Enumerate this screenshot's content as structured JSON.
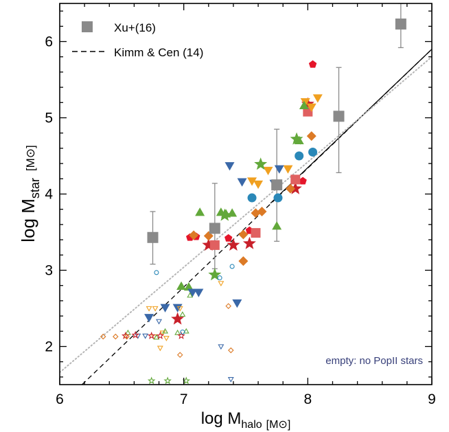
{
  "chart_data": {
    "type": "scatter",
    "xlabel_main": "log M",
    "xlabel_sub": "halo",
    "xlabel_unit": "[M⊙]",
    "ylabel_main": "log M",
    "ylabel_sub": "star",
    "ylabel_unit": "[M⊙]",
    "xlim": [
      6,
      9
    ],
    "ylim": [
      1.5,
      6.5
    ],
    "xticks": [
      6,
      7,
      8,
      9
    ],
    "yticks": [
      2,
      3,
      4,
      5,
      6
    ],
    "annotation": "empty: no PopII stars",
    "legend_position": "top-left",
    "legend": [
      {
        "label": "Xu+(16)",
        "style": "grey-square"
      },
      {
        "label": "Kimm & Cen (14)",
        "style": "dashed-line"
      }
    ],
    "colors": {
      "grey": "#8a8a8a",
      "red": "#c8202a",
      "bright_red": "#e5152a",
      "pink": "#e06060",
      "orange": "#dc7a26",
      "yellow_orange": "#f0a020",
      "green": "#62a83a",
      "blue": "#3a68a8",
      "teal": "#2a88b8",
      "annotation": "#38407a"
    },
    "lines": [
      {
        "name": "Kimm & Cen (14)",
        "style": "dashed",
        "x": [
          6.18,
          9.0
        ],
        "y": [
          1.5,
          5.9
        ]
      },
      {
        "name": "solid",
        "style": "solid",
        "x": [
          7.7,
          9.0
        ],
        "y": [
          3.88,
          5.9
        ]
      },
      {
        "name": "dotted",
        "style": "dotted",
        "x": [
          6.0,
          9.0
        ],
        "y": [
          1.66,
          5.8
        ]
      }
    ],
    "xu16": {
      "x": [
        6.75,
        7.25,
        7.75,
        8.25,
        8.75
      ],
      "y": [
        3.43,
        3.55,
        4.12,
        5.02,
        6.23
      ],
      "ylo": [
        3.08,
        3.02,
        3.38,
        4.28,
        5.92
      ],
      "yhi": [
        3.77,
        4.14,
        4.85,
        5.66,
        6.5
      ]
    },
    "series": [
      {
        "marker": "star",
        "color": "red",
        "filled": true,
        "points": [
          [
            8.0,
            5.18
          ],
          [
            7.9,
            4.07
          ],
          [
            7.2,
            3.33
          ],
          [
            7.4,
            3.33
          ],
          [
            7.53,
            3.35
          ],
          [
            6.95,
            2.36
          ]
        ]
      },
      {
        "marker": "pentagon",
        "color": "bright_red",
        "filled": true,
        "points": [
          [
            8.04,
            5.7
          ],
          [
            7.96,
            4.17
          ],
          [
            7.1,
            3.44
          ],
          [
            7.05,
            3.43
          ],
          [
            7.36,
            3.42
          ],
          [
            7.53,
            3.52
          ]
        ]
      },
      {
        "marker": "square",
        "color": "pink",
        "filled": true,
        "points": [
          [
            8.0,
            5.08
          ],
          [
            7.9,
            4.19
          ],
          [
            7.58,
            3.49
          ],
          [
            7.25,
            3.33
          ]
        ]
      },
      {
        "marker": "diamond",
        "color": "orange",
        "filled": true,
        "points": [
          [
            8.03,
            4.76
          ],
          [
            7.86,
            4.07
          ],
          [
            7.63,
            3.77
          ],
          [
            7.58,
            3.75
          ],
          [
            7.08,
            3.46
          ],
          [
            7.2,
            3.45
          ],
          [
            7.48,
            3.47
          ],
          [
            7.48,
            3.12
          ]
        ]
      },
      {
        "marker": "triangle-down",
        "color": "yellow_orange",
        "filled": true,
        "points": [
          [
            8.08,
            5.26
          ],
          [
            7.98,
            5.21
          ],
          [
            8.03,
            5.14
          ],
          [
            7.84,
            4.33
          ],
          [
            7.68,
            4.31
          ],
          [
            7.55,
            4.17
          ],
          [
            7.6,
            4.13
          ]
        ]
      },
      {
        "marker": "triangle-up",
        "color": "green",
        "filled": true,
        "points": [
          [
            7.97,
            5.16
          ],
          [
            7.93,
            4.7
          ],
          [
            7.3,
            3.76
          ],
          [
            7.34,
            3.74
          ],
          [
            7.39,
            3.75
          ],
          [
            7.13,
            3.76
          ],
          [
            7.75,
            3.58
          ],
          [
            6.98,
            2.79
          ],
          [
            7.04,
            2.78
          ]
        ]
      },
      {
        "marker": "star",
        "color": "green",
        "filled": true,
        "points": [
          [
            7.91,
            4.72
          ],
          [
            7.62,
            4.39
          ],
          [
            7.25,
            2.94
          ],
          [
            7.33,
            3.72
          ]
        ]
      },
      {
        "marker": "triangle-down",
        "color": "blue",
        "filled": true,
        "points": [
          [
            7.37,
            4.37
          ],
          [
            7.47,
            4.16
          ],
          [
            7.73,
            4.14
          ],
          [
            7.77,
            4.33
          ],
          [
            7.07,
            2.71
          ],
          [
            7.12,
            2.71
          ],
          [
            6.85,
            2.51
          ],
          [
            6.95,
            2.51
          ],
          [
            6.72,
            2.38
          ],
          [
            7.43,
            2.57
          ]
        ]
      },
      {
        "marker": "circle",
        "color": "teal",
        "filled": true,
        "points": [
          [
            7.93,
            4.5
          ],
          [
            8.04,
            4.55
          ],
          [
            7.55,
            3.95
          ],
          [
            7.76,
            3.95
          ]
        ]
      },
      {
        "marker": "triangle-down",
        "color": "yellow_orange",
        "filled": false,
        "points": [
          [
            6.72,
            2.5
          ],
          [
            6.77,
            2.5
          ],
          [
            6.83,
            2.18
          ],
          [
            6.76,
            2.13
          ],
          [
            6.86,
            2.11
          ],
          [
            6.97,
            2.5
          ],
          [
            6.81,
            1.98
          ],
          [
            7.3,
            2.83
          ]
        ]
      },
      {
        "marker": "triangle-down",
        "color": "blue",
        "filled": false,
        "points": [
          [
            6.69,
            2.14
          ],
          [
            6.63,
            2.14
          ],
          [
            6.8,
            2.33
          ],
          [
            7.3,
            2.0
          ],
          [
            7.38,
            1.57
          ]
        ]
      },
      {
        "marker": "triangle-up",
        "color": "green",
        "filled": false,
        "points": [
          [
            6.85,
            2.2
          ],
          [
            6.78,
            2.12
          ],
          [
            6.95,
            2.18
          ],
          [
            6.99,
            2.42
          ],
          [
            7.02,
            2.2
          ],
          [
            7.05,
            2.67
          ],
          [
            6.55,
            2.18
          ]
        ]
      },
      {
        "marker": "star",
        "color": "red",
        "filled": false,
        "points": [
          [
            6.53,
            2.14
          ],
          [
            6.61,
            2.15
          ],
          [
            6.74,
            2.14
          ],
          [
            6.98,
            2.14
          ],
          [
            6.81,
            2.14
          ]
        ]
      },
      {
        "marker": "diamond",
        "color": "orange",
        "filled": false,
        "points": [
          [
            6.35,
            2.13
          ],
          [
            6.45,
            2.13
          ],
          [
            6.54,
            2.13
          ],
          [
            6.97,
            1.89
          ],
          [
            7.36,
            2.53
          ],
          [
            7.38,
            1.95
          ]
        ]
      },
      {
        "marker": "star",
        "color": "green",
        "filled": false,
        "points": [
          [
            6.74,
            1.55
          ],
          [
            6.87,
            1.55
          ],
          [
            7.02,
            1.55
          ]
        ]
      },
      {
        "marker": "circle",
        "color": "teal",
        "filled": false,
        "points": [
          [
            6.78,
            2.97
          ],
          [
            7.29,
            2.9
          ],
          [
            7.39,
            3.05
          ],
          [
            6.99,
            2.19
          ]
        ]
      }
    ]
  }
}
